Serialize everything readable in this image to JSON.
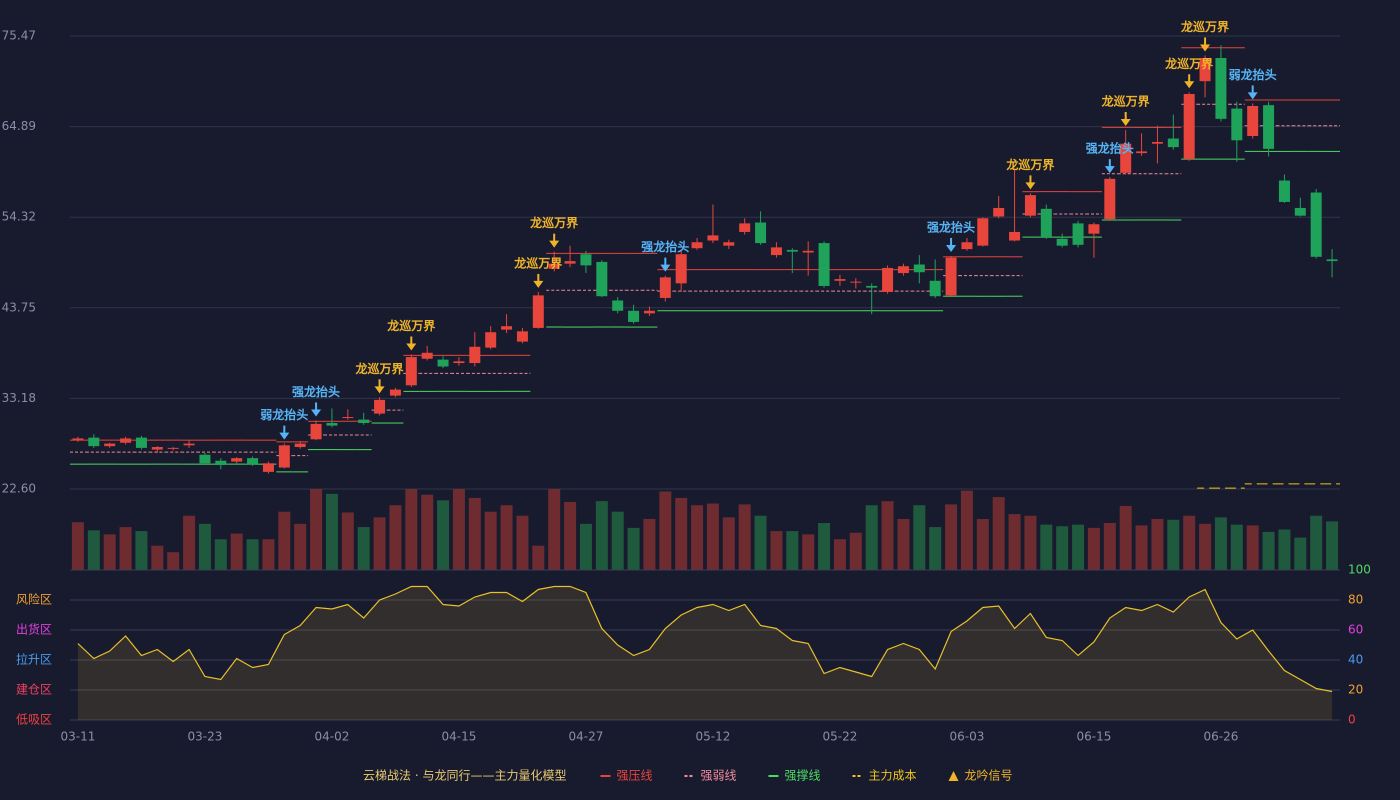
{
  "chart_data": [
    {
      "type": "candlestick",
      "title": "云梯战法 · 与龙同行——主力量化模型",
      "ylim": [
        22.6,
        75.47
      ],
      "yticks": [
        {
          "value": 22.6,
          "label": "22.60"
        },
        33.18,
        43.75,
        54.32,
        64.89,
        75.47
      ],
      "grid": true,
      "up_color": "#e8453c",
      "down_color": "#1fa35a",
      "open": [
        28.3,
        28.6,
        27.6,
        28.0,
        28.6,
        27.2,
        27.3,
        27.7,
        26.6,
        25.9,
        25.8,
        26.2,
        24.6,
        25.1,
        27.5,
        28.4,
        30.3,
        30.9,
        30.7,
        31.4,
        33.5,
        34.7,
        37.8,
        37.7,
        37.3,
        37.3,
        39.1,
        41.2,
        39.8,
        41.4,
        48.3,
        48.9,
        50.0,
        49.1,
        44.6,
        43.4,
        43.1,
        44.9,
        46.6,
        50.7,
        51.6,
        51.0,
        52.6,
        53.7,
        49.9,
        50.5,
        50.2,
        51.3,
        46.9,
        46.7,
        46.3,
        45.6,
        47.8,
        48.8,
        46.9,
        45.2,
        50.6,
        51.0,
        54.4,
        51.6,
        54.5,
        55.3,
        51.8,
        53.6,
        52.4,
        54.1,
        59.5,
        61.8,
        62.9,
        63.5,
        61.1,
        70.2,
        72.9,
        67.0,
        63.8,
        67.4,
        58.6,
        55.4,
        57.2,
        49.4
      ],
      "high": [
        28.7,
        29.0,
        28.0,
        28.7,
        28.8,
        27.6,
        27.5,
        28.3,
        26.8,
        26.2,
        26.3,
        26.4,
        25.8,
        27.9,
        28.2,
        30.6,
        32.0,
        31.9,
        31.5,
        33.3,
        34.4,
        38.3,
        39.3,
        38.1,
        38.0,
        40.9,
        41.6,
        43.0,
        41.4,
        45.6,
        50.3,
        51.0,
        50.4,
        49.3,
        45.0,
        44.1,
        43.9,
        47.5,
        50.5,
        51.9,
        55.8,
        51.7,
        54.2,
        55.0,
        51.4,
        50.7,
        51.5,
        51.5,
        47.6,
        47.2,
        46.6,
        48.7,
        48.9,
        49.9,
        49.4,
        49.8,
        51.9,
        54.3,
        56.8,
        59.8,
        57.1,
        55.8,
        52.4,
        53.9,
        53.7,
        59.0,
        64.5,
        64.1,
        65.0,
        66.3,
        68.9,
        73.2,
        74.4,
        67.8,
        67.6,
        67.8,
        59.3,
        56.6,
        57.6,
        50.6
      ],
      "low": [
        28.1,
        27.4,
        27.4,
        27.8,
        27.2,
        26.8,
        27.1,
        27.4,
        25.4,
        24.9,
        25.6,
        25.3,
        24.4,
        25.0,
        27.3,
        28.3,
        29.8,
        30.7,
        30.1,
        31.2,
        33.3,
        34.5,
        37.6,
        36.7,
        37.0,
        36.9,
        38.9,
        40.8,
        39.6,
        41.3,
        48.0,
        48.5,
        47.8,
        45.0,
        43.1,
        41.9,
        42.8,
        44.5,
        45.6,
        50.5,
        51.3,
        50.6,
        52.3,
        51.1,
        49.6,
        47.8,
        47.5,
        46.1,
        46.3,
        46.0,
        43.0,
        45.4,
        47.5,
        46.6,
        44.9,
        45.0,
        50.4,
        50.9,
        54.2,
        51.5,
        54.3,
        51.8,
        50.8,
        50.8,
        49.6,
        53.9,
        59.3,
        61.5,
        60.6,
        62.2,
        60.9,
        68.3,
        65.5,
        60.8,
        63.5,
        61.4,
        56.0,
        54.4,
        49.5,
        47.3
      ],
      "close": [
        28.5,
        27.6,
        27.9,
        28.5,
        27.4,
        27.5,
        27.4,
        27.9,
        25.6,
        25.4,
        26.2,
        25.5,
        25.6,
        27.7,
        27.9,
        30.2,
        30.0,
        31.0,
        30.3,
        33.0,
        34.2,
        38.0,
        38.5,
        36.9,
        37.5,
        39.2,
        40.9,
        41.6,
        41.0,
        45.2,
        48.9,
        49.2,
        48.7,
        45.1,
        43.4,
        42.1,
        43.4,
        47.3,
        50.0,
        51.4,
        52.2,
        51.4,
        53.6,
        51.3,
        50.8,
        50.3,
        50.4,
        46.3,
        47.1,
        46.8,
        46.1,
        48.4,
        48.6,
        47.9,
        45.1,
        49.6,
        51.4,
        54.2,
        55.4,
        52.6,
        56.9,
        52.0,
        51.0,
        51.1,
        53.5,
        58.8,
        62.9,
        62.0,
        63.1,
        62.5,
        68.7,
        72.9,
        65.8,
        63.3,
        67.3,
        62.3,
        56.1,
        54.5,
        49.7,
        49.2
      ],
      "lines": [
        {
          "name": "强压线",
          "color": "#e8453c",
          "dash": "none",
          "values": [
            28.3,
            28.3,
            28.3,
            28.3,
            28.3,
            28.3,
            28.3,
            28.3,
            28.3,
            28.3,
            28.3,
            28.3,
            28.3,
            28.1,
            28.1,
            30.5,
            30.5,
            30.5,
            30.5,
            null,
            null,
            38.2,
            38.2,
            38.2,
            38.2,
            38.2,
            38.2,
            38.2,
            38.2,
            null,
            50.1,
            50.1,
            50.1,
            50.1,
            50.1,
            50.1,
            50.1,
            48.2,
            48.2,
            48.2,
            48.2,
            48.2,
            48.2,
            48.2,
            48.2,
            48.2,
            48.2,
            48.2,
            48.2,
            48.2,
            48.2,
            48.2,
            48.2,
            48.2,
            48.2,
            49.7,
            49.7,
            49.7,
            49.7,
            49.7,
            57.3,
            57.3,
            57.3,
            57.3,
            57.3,
            64.8,
            64.8,
            64.8,
            64.8,
            64.8,
            74.1,
            74.1,
            74.1,
            74.1,
            68.0,
            68.0,
            68.0,
            68.0,
            68.0,
            68.0
          ]
        },
        {
          "name": "强弱线",
          "color": "#f08a9a",
          "dash": "3 2",
          "values": [
            26.9,
            26.9,
            26.9,
            26.9,
            26.9,
            26.9,
            26.9,
            26.9,
            26.9,
            26.9,
            26.9,
            26.9,
            26.9,
            26.5,
            26.5,
            28.9,
            28.9,
            28.9,
            28.9,
            31.8,
            31.8,
            36.1,
            36.1,
            36.1,
            36.1,
            36.1,
            36.1,
            36.1,
            36.1,
            null,
            45.8,
            45.8,
            45.8,
            45.8,
            45.8,
            45.8,
            45.8,
            45.7,
            45.7,
            45.7,
            45.7,
            45.7,
            45.7,
            45.7,
            45.7,
            45.7,
            45.7,
            45.7,
            45.7,
            45.7,
            45.7,
            45.7,
            45.7,
            45.7,
            45.7,
            47.5,
            47.5,
            47.5,
            47.5,
            47.5,
            54.7,
            54.7,
            54.7,
            54.7,
            54.7,
            59.4,
            59.4,
            59.4,
            59.4,
            59.4,
            67.5,
            67.5,
            67.5,
            67.5,
            65.0,
            65.0,
            65.0,
            65.0,
            65.0,
            65.0
          ]
        },
        {
          "name": "强撑线",
          "color": "#4cd964",
          "dash": "none",
          "values": [
            25.5,
            25.5,
            25.5,
            25.5,
            25.5,
            25.5,
            25.5,
            25.5,
            25.5,
            25.5,
            25.5,
            25.5,
            25.5,
            24.6,
            24.6,
            27.2,
            27.2,
            27.2,
            27.2,
            30.3,
            30.3,
            34.0,
            34.0,
            34.0,
            34.0,
            34.0,
            34.0,
            34.0,
            34.0,
            null,
            41.5,
            41.5,
            41.5,
            41.5,
            41.5,
            41.5,
            41.5,
            43.4,
            43.4,
            43.4,
            43.4,
            43.4,
            43.4,
            43.4,
            43.4,
            43.4,
            43.4,
            43.4,
            43.4,
            43.4,
            43.4,
            43.4,
            43.4,
            43.4,
            43.4,
            45.1,
            45.1,
            45.1,
            45.1,
            45.1,
            52.0,
            52.0,
            52.0,
            52.0,
            52.0,
            54.0,
            54.0,
            54.0,
            54.0,
            54.0,
            61.1,
            61.1,
            61.1,
            61.1,
            62.0,
            62.0,
            62.0,
            62.0,
            62.0,
            62.0
          ]
        },
        {
          "name": "主力成本",
          "color": "#f0c419",
          "dash": "7 5",
          "values": [
            null,
            null,
            null,
            null,
            null,
            null,
            null,
            null,
            null,
            null,
            null,
            null,
            null,
            null,
            null,
            null,
            null,
            null,
            null,
            null,
            null,
            null,
            null,
            null,
            null,
            null,
            null,
            null,
            null,
            null,
            null,
            null,
            null,
            null,
            null,
            null,
            null,
            null,
            null,
            null,
            null,
            null,
            null,
            null,
            null,
            null,
            null,
            null,
            null,
            null,
            null,
            null,
            null,
            null,
            null,
            null,
            null,
            null,
            null,
            null,
            null,
            null,
            null,
            null,
            null,
            null,
            null,
            null,
            null,
            null,
            null,
            22.7,
            22.7,
            22.7,
            23.2,
            23.2,
            23.2,
            23.2,
            23.2,
            23.2
          ]
        }
      ],
      "signal_name": "龙吟信号",
      "signal_color": "#f0b429",
      "signals": [
        null,
        null,
        null,
        null,
        null,
        null,
        null,
        null,
        null,
        null,
        null,
        null,
        null,
        {
          "label": "弱龙抬头",
          "color": "#56b4f5"
        },
        null,
        {
          "label": "强龙抬头",
          "color": "#56b4f5"
        },
        null,
        null,
        null,
        {
          "label": "龙巡万界",
          "color": "#f0b429"
        },
        null,
        {
          "label": "龙巡万界",
          "color": "#f0b429"
        },
        null,
        null,
        null,
        null,
        null,
        null,
        null,
        {
          "label": "龙巡万界",
          "color": "#f0b429"
        },
        {
          "label": "龙巡万界",
          "color": "#f0b429"
        },
        null,
        null,
        null,
        null,
        null,
        null,
        {
          "label": "强龙抬头",
          "color": "#56b4f5"
        },
        null,
        null,
        null,
        null,
        null,
        null,
        null,
        null,
        null,
        null,
        null,
        null,
        null,
        null,
        null,
        null,
        null,
        {
          "label": "强龙抬头",
          "color": "#56b4f5"
        },
        null,
        null,
        null,
        null,
        {
          "label": "龙巡万界",
          "color": "#f0b429"
        },
        null,
        null,
        null,
        null,
        {
          "label": "强龙抬头",
          "color": "#56b4f5"
        },
        {
          "label": "龙巡万界",
          "color": "#f0b429"
        },
        null,
        null,
        null,
        {
          "label": "龙巡万界",
          "color": "#f0b429"
        },
        {
          "label": "龙巡万界",
          "color": "#f0b429"
        },
        null,
        null,
        {
          "label": "弱龙抬头",
          "color": "#56b4f5"
        },
        null,
        null,
        null,
        null,
        null
      ]
    },
    {
      "type": "bar",
      "ylim": [
        0,
        100
      ],
      "up_color": "#6e2c30",
      "down_color": "#1f5a3e",
      "values": [
        59,
        49,
        44,
        53,
        48,
        30,
        22,
        67,
        57,
        38,
        45,
        38,
        38,
        72,
        57,
        100,
        94,
        71,
        53,
        65,
        80,
        100,
        93,
        86,
        100,
        89,
        72,
        80,
        67,
        30,
        100,
        84,
        57,
        85,
        72,
        52,
        63,
        97,
        89,
        80,
        82,
        65,
        81,
        67,
        48,
        48,
        44,
        58,
        38,
        46,
        80,
        85,
        63,
        80,
        53,
        81,
        98,
        63,
        90,
        69,
        67,
        56,
        54,
        56,
        52,
        58,
        79,
        55,
        63,
        62,
        67,
        57,
        65,
        56,
        55,
        47,
        50,
        40,
        67,
        60
      ]
    },
    {
      "type": "line",
      "color": "#e8c02a",
      "ylim": [
        0,
        100
      ],
      "yticks": [
        100,
        80,
        60,
        40,
        20,
        0
      ],
      "ytick_colors": [
        "#4cd964",
        "#f0a030",
        "#e040e0",
        "#4a9af0",
        "#f0a030",
        "#f04040"
      ],
      "zones": [
        {
          "value": 80,
          "label": "风险区",
          "color": "#f0a030"
        },
        {
          "value": 60,
          "label": "出货区",
          "color": "#e040e0"
        },
        {
          "value": 40,
          "label": "拉升区",
          "color": "#4a9af0"
        },
        {
          "value": 20,
          "label": "建仓区",
          "color": "#f04060"
        },
        {
          "value": 0,
          "label": "低吸区",
          "color": "#f04040"
        }
      ],
      "categories": [
        "03-11",
        null,
        null,
        null,
        null,
        null,
        null,
        null,
        "03-23",
        null,
        null,
        null,
        null,
        null,
        null,
        null,
        "04-02",
        null,
        null,
        null,
        null,
        null,
        null,
        null,
        "04-15",
        null,
        null,
        null,
        null,
        null,
        null,
        null,
        "04-27",
        null,
        null,
        null,
        null,
        null,
        null,
        null,
        "05-12",
        null,
        null,
        null,
        null,
        null,
        null,
        null,
        "05-22",
        null,
        null,
        null,
        null,
        null,
        null,
        null,
        "06-03",
        null,
        null,
        null,
        null,
        null,
        null,
        null,
        "06-15",
        null,
        null,
        null,
        null,
        null,
        null,
        null,
        "06-26",
        null,
        null,
        null,
        null,
        null,
        null,
        null
      ],
      "values": [
        51,
        41,
        46,
        56,
        43,
        47,
        39,
        47,
        29,
        27,
        41,
        35,
        37,
        57,
        63,
        75,
        74,
        77,
        68,
        80,
        84,
        89,
        89,
        77,
        76,
        82,
        85,
        85,
        79,
        87,
        89,
        89,
        85,
        61,
        50,
        43,
        47,
        61,
        70,
        75,
        77,
        73,
        77,
        63,
        61,
        53,
        51,
        31,
        35,
        32,
        29,
        47,
        51,
        47,
        34,
        59,
        66,
        75,
        76,
        61,
        71,
        55,
        53,
        43,
        52,
        68,
        75,
        73,
        77,
        72,
        82,
        87,
        65,
        54,
        60,
        46,
        33,
        27,
        21,
        19
      ]
    }
  ]
}
